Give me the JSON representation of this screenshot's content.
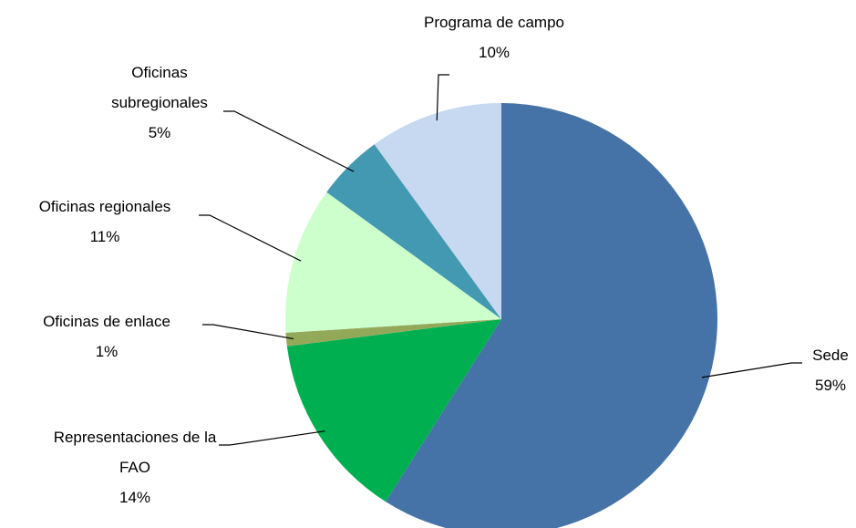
{
  "chart_data": {
    "type": "pie",
    "categories": [
      "Sede",
      "Representaciones de la FAO",
      "Oficinas de enlace",
      "Oficinas regionales",
      "Oficinas subregionales",
      "Programa de campo"
    ],
    "values": [
      59,
      14,
      1,
      11,
      5,
      10
    ],
    "value_labels": [
      "59%",
      "14%",
      "1%",
      "11%",
      "5%",
      "10%"
    ],
    "colors": [
      "#4673a7",
      "#00b050",
      "#93a95a",
      "#ccffcc",
      "#4399b1",
      "#c6d9f1"
    ]
  }
}
